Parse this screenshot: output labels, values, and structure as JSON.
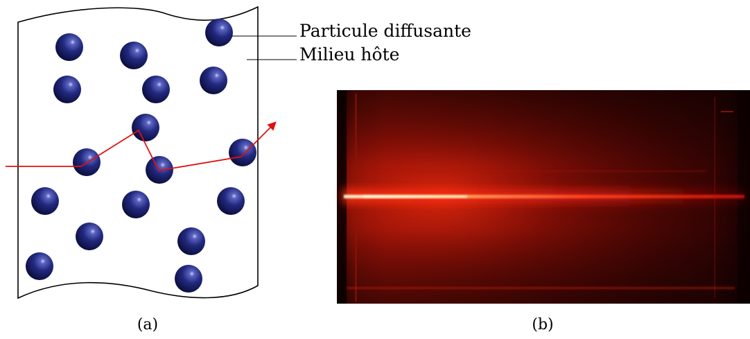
{
  "labels": {
    "particle": "Particule diffusante",
    "medium": "Milieu hôte"
  },
  "captions": {
    "a": "(a)",
    "b": "(b)"
  },
  "colors": {
    "particle": "#1a1f6b",
    "ray": "#e01010",
    "outline": "#000000",
    "photo_background": "#3a0505",
    "beam": "#ff3a1a"
  }
}
